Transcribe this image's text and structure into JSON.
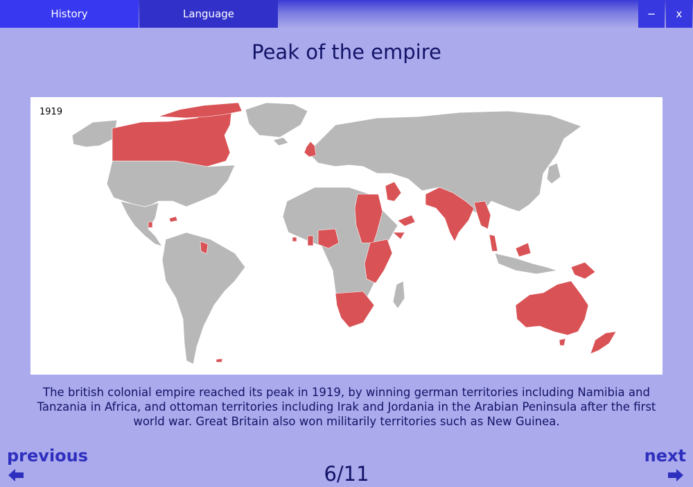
{
  "menu": {
    "tabs": [
      {
        "label": "History"
      },
      {
        "label": "Language"
      }
    ]
  },
  "window_controls": {
    "minimize_label": "−",
    "close_label": "x"
  },
  "slide": {
    "title": "Peak of the empire",
    "map": {
      "year_label": "1919",
      "highlight_color": "#d95255",
      "land_color": "#b8b8b8",
      "background_color": "#ffffff"
    },
    "caption": "The british colonial empire reached its peak in 1919, by winning german territories including Namibia and Tanzania in Africa, and ottoman territories including Irak and Jordania in the Arabian Peninsula after the first world war. Great Britain also won militarily territories such as New Guinea."
  },
  "navigation": {
    "previous_label": "previous",
    "next_label": "next",
    "page_counter": "6/11"
  },
  "icons": {
    "previous": "arrow-left-icon",
    "next": "arrow-right-icon"
  }
}
